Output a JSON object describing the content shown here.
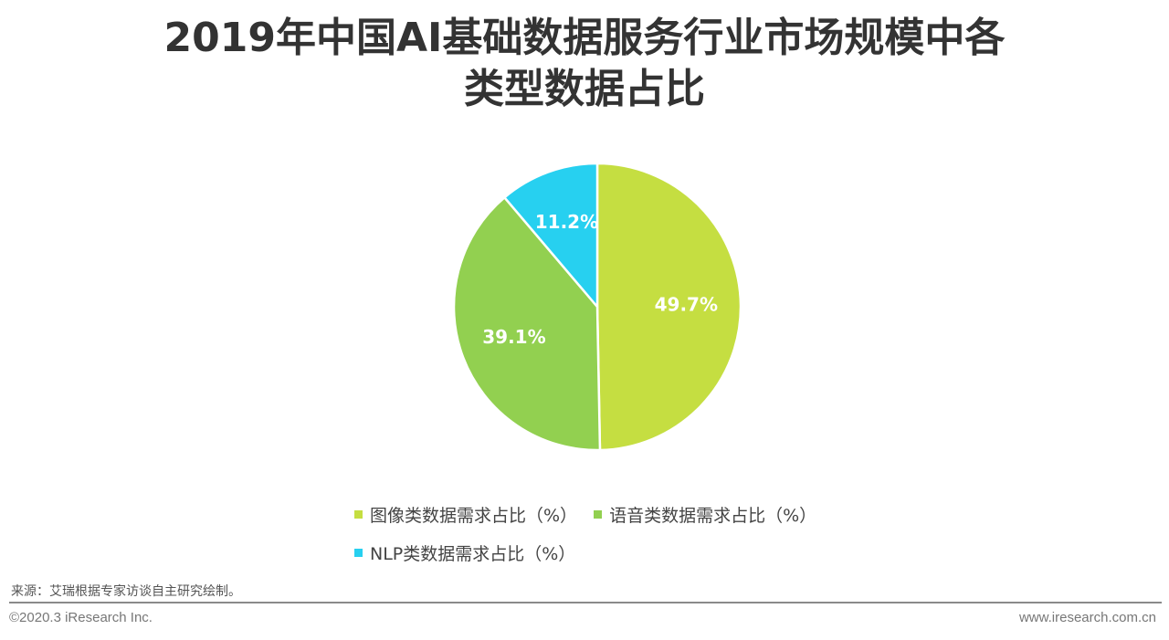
{
  "title_lines": [
    "2019年中国AI基础数据服务行业市场规模中各",
    "类型数据占比"
  ],
  "chart_data": {
    "type": "pie",
    "categories": [
      "图像类数据需求占比（%）",
      "语音类数据需求占比（%）",
      "NLP类数据需求占比（%）"
    ],
    "values": [
      49.7,
      39.1,
      11.2
    ],
    "data_labels": [
      "49.7%",
      "39.1%",
      "11.2%"
    ],
    "colors": [
      "#c5de41",
      "#92d050",
      "#27d0f0"
    ],
    "legend_position": "bottom",
    "start_angle": "12 o'clock, clockwise"
  },
  "legend": [
    {
      "label": "图像类数据需求占比（%）",
      "color": "#c5de41"
    },
    {
      "label": "语音类数据需求占比（%）",
      "color": "#92d050"
    },
    {
      "label": "NLP类数据需求占比（%）",
      "color": "#27d0f0"
    }
  ],
  "footer": {
    "source": "来源：艾瑞根据专家访谈自主研究绘制。",
    "copyright": "©2020.3 iResearch Inc.",
    "website": "www.iresearch.com.cn"
  }
}
